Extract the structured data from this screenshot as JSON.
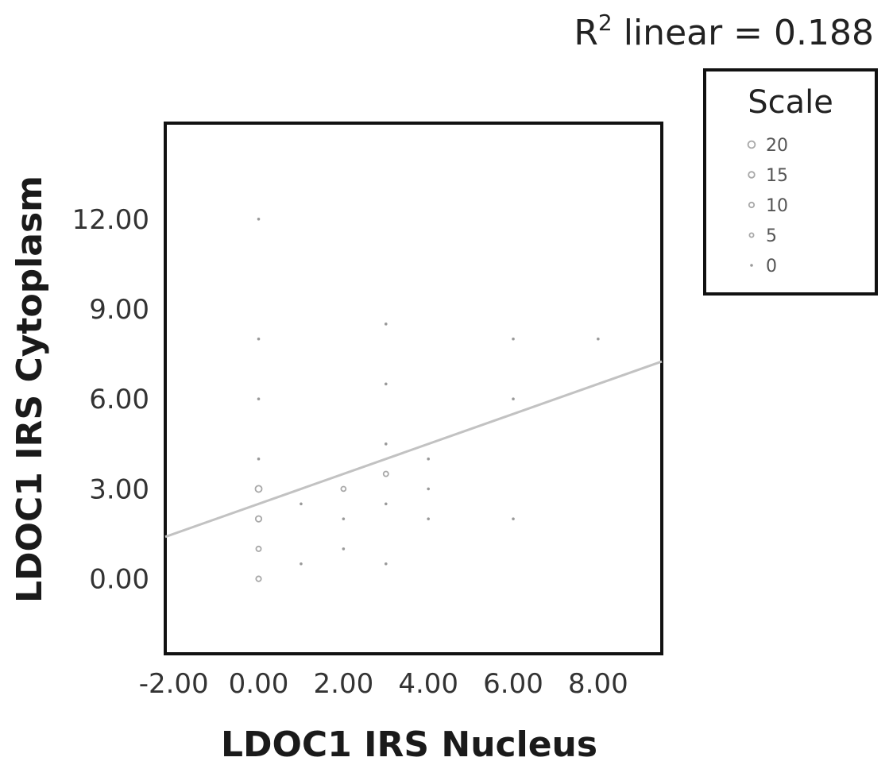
{
  "chart_data": {
    "type": "scatter",
    "title": "",
    "xlabel": "LDOC1 IRS Nucleus",
    "ylabel": "LDOC1 IRS Cytoplasm",
    "xlim": [
      -2.2,
      9.5
    ],
    "ylim": [
      -2.5,
      15.2
    ],
    "x_ticks": [
      "-2.00",
      "0.00",
      "2.00",
      "4.00",
      "6.00",
      "8.00"
    ],
    "x_tick_values": [
      -2,
      0,
      2,
      4,
      6,
      8
    ],
    "y_ticks": [
      "0.00",
      "3.00",
      "6.00",
      "9.00",
      "12.00"
    ],
    "y_tick_values": [
      0,
      3,
      6,
      9,
      12
    ],
    "grid": false,
    "annotation": {
      "prefix": "R",
      "superscript": "2",
      "suffix": " linear = 0.188"
    },
    "fit_line": {
      "intercept": 2.5,
      "slope": 0.5,
      "color": "#c2c2c2"
    },
    "legend": {
      "title": "Scale",
      "placement": "top-right",
      "entries": [
        {
          "label": "20",
          "count": 20
        },
        {
          "label": "15",
          "count": 15
        },
        {
          "label": "10",
          "count": 10
        },
        {
          "label": "5",
          "count": 5
        },
        {
          "label": "0",
          "count": 0
        }
      ]
    },
    "points": [
      {
        "x": 0,
        "y": 12,
        "count": 1
      },
      {
        "x": 0,
        "y": 8,
        "count": 1
      },
      {
        "x": 0,
        "y": 6,
        "count": 1
      },
      {
        "x": 0,
        "y": 4,
        "count": 2
      },
      {
        "x": 0,
        "y": 3,
        "count": 17
      },
      {
        "x": 0,
        "y": 2,
        "count": 14
      },
      {
        "x": 0,
        "y": 1,
        "count": 9
      },
      {
        "x": 0,
        "y": 0,
        "count": 10
      },
      {
        "x": 1,
        "y": 2.5,
        "count": 1
      },
      {
        "x": 1,
        "y": 0.5,
        "count": 1
      },
      {
        "x": 2,
        "y": 3,
        "count": 8
      },
      {
        "x": 2,
        "y": 2,
        "count": 2
      },
      {
        "x": 2,
        "y": 1,
        "count": 1
      },
      {
        "x": 3,
        "y": 8.5,
        "count": 1
      },
      {
        "x": 3,
        "y": 6.5,
        "count": 1
      },
      {
        "x": 3,
        "y": 4.5,
        "count": 3
      },
      {
        "x": 3,
        "y": 3.5,
        "count": 9
      },
      {
        "x": 3,
        "y": 2.5,
        "count": 2
      },
      {
        "x": 3,
        "y": 0.5,
        "count": 1
      },
      {
        "x": 4,
        "y": 4,
        "count": 1
      },
      {
        "x": 4,
        "y": 3,
        "count": 1
      },
      {
        "x": 4,
        "y": 2,
        "count": 1
      },
      {
        "x": 6,
        "y": 8,
        "count": 1
      },
      {
        "x": 6,
        "y": 6,
        "count": 1
      },
      {
        "x": 6,
        "y": 2,
        "count": 1
      },
      {
        "x": 8,
        "y": 8,
        "count": 1
      }
    ]
  }
}
